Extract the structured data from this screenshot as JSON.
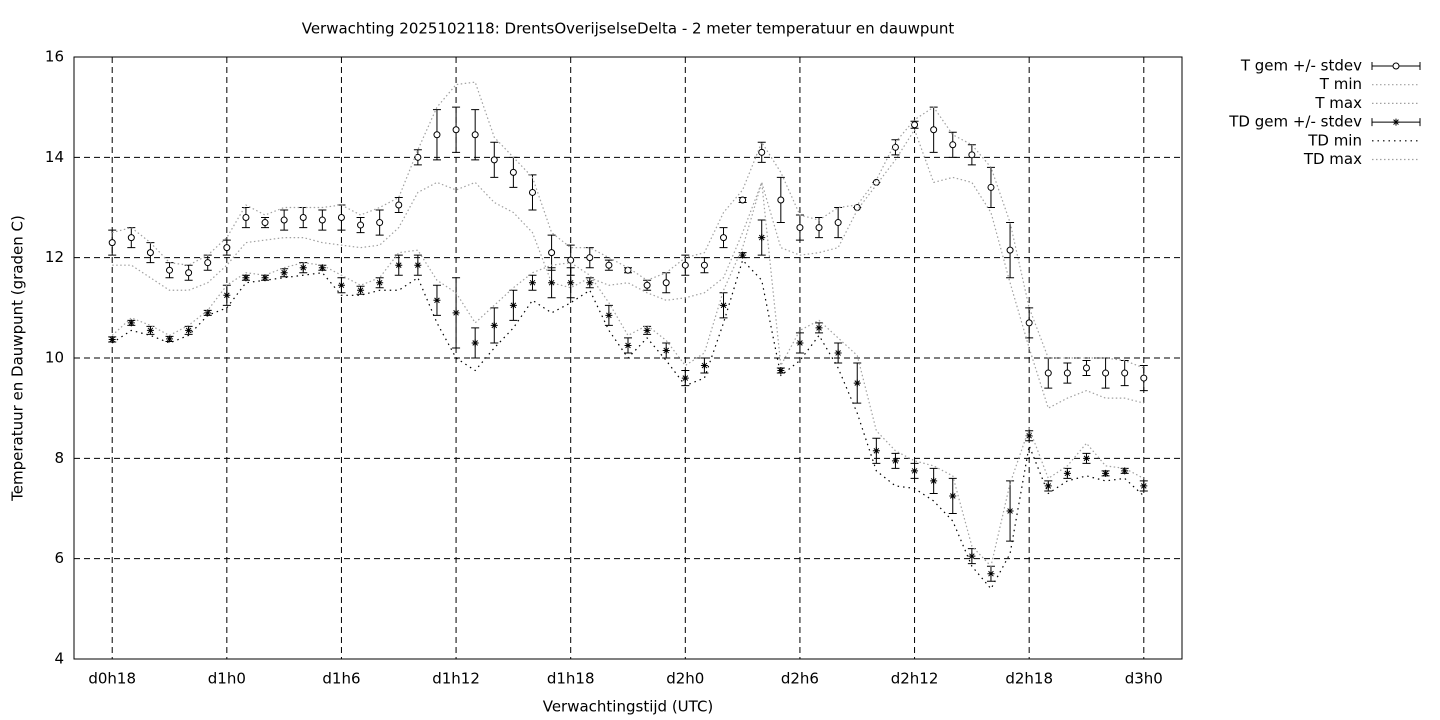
{
  "chart_data": {
    "type": "line",
    "title": "Verwachting 2025102118: DrentsOverijselseDelta - 2 meter temperatuur en dauwpunt",
    "xlabel": "Verwachtingstijd (UTC)",
    "ylabel": "Temperatuur en Dauwpunt (graden C)",
    "x": [
      0,
      1,
      2,
      3,
      4,
      5,
      6,
      7,
      8,
      9,
      10,
      11,
      12,
      13,
      14,
      15,
      16,
      17,
      18,
      19,
      20,
      21,
      22,
      23,
      24,
      25,
      26,
      27,
      28,
      29,
      30,
      31,
      32,
      33,
      34,
      35,
      36,
      37,
      38,
      39,
      40,
      41,
      42,
      43,
      44,
      45,
      46,
      47,
      48,
      49,
      50,
      51,
      52,
      53,
      54
    ],
    "xlim": [
      -2,
      56
    ],
    "xticks": [
      {
        "value": 0,
        "label": "d0h18"
      },
      {
        "value": 6,
        "label": "d1h0"
      },
      {
        "value": 12,
        "label": "d1h6"
      },
      {
        "value": 18,
        "label": "d1h12"
      },
      {
        "value": 24,
        "label": "d1h18"
      },
      {
        "value": 30,
        "label": "d2h0"
      },
      {
        "value": 36,
        "label": "d2h6"
      },
      {
        "value": 42,
        "label": "d2h12"
      },
      {
        "value": 48,
        "label": "d2h18"
      },
      {
        "value": 54,
        "label": "d3h0"
      }
    ],
    "ylim": [
      4,
      16
    ],
    "yticks": [
      4,
      6,
      8,
      10,
      12,
      14,
      16
    ],
    "grid": true,
    "legend": "right",
    "series": [
      {
        "name": "T gem +/- stdev",
        "color": "#000000",
        "marker": "circle",
        "style": "errorbars",
        "values": [
          12.3,
          12.4,
          12.1,
          11.75,
          11.7,
          11.9,
          12.2,
          12.8,
          12.7,
          12.75,
          12.8,
          12.75,
          12.8,
          12.65,
          12.7,
          13.05,
          14.0,
          14.45,
          14.55,
          14.45,
          13.95,
          13.7,
          13.3,
          12.1,
          11.95,
          12.0,
          11.85,
          11.75,
          11.45,
          11.5,
          11.85,
          11.85,
          12.4,
          13.15,
          14.1,
          13.15,
          12.6,
          12.6,
          12.7,
          13.0,
          13.5,
          14.2,
          14.65,
          14.55,
          14.25,
          14.05,
          13.4,
          12.15,
          10.7,
          9.7,
          9.7,
          9.8,
          9.7,
          9.7,
          9.6
        ],
        "errors": [
          0.25,
          0.2,
          0.2,
          0.15,
          0.15,
          0.15,
          0.15,
          0.2,
          0.1,
          0.2,
          0.2,
          0.2,
          0.25,
          0.15,
          0.25,
          0.15,
          0.15,
          0.5,
          0.45,
          0.5,
          0.35,
          0.3,
          0.35,
          0.35,
          0.3,
          0.2,
          0.1,
          0.05,
          0.1,
          0.2,
          0.2,
          0.15,
          0.2,
          0.05,
          0.2,
          0.45,
          0.25,
          0.2,
          0.3,
          0,
          0,
          0.15,
          0.07,
          0.45,
          0.25,
          0.2,
          0.4,
          0.55,
          0.3,
          0.3,
          0.2,
          0.15,
          0.3,
          0.25,
          0.25
        ]
      },
      {
        "name": "T min",
        "color": "#a0a0a0",
        "style": "dotted",
        "values": [
          11.85,
          11.85,
          11.6,
          11.35,
          11.35,
          11.5,
          11.85,
          12.3,
          12.35,
          12.4,
          12.4,
          12.3,
          12.25,
          12.2,
          12.25,
          12.6,
          13.3,
          13.5,
          13.35,
          13.5,
          13.1,
          12.9,
          12.5,
          11.5,
          11.4,
          11.6,
          11.45,
          11.5,
          11.3,
          11.15,
          11.2,
          11.3,
          11.6,
          12.5,
          13.5,
          12.2,
          12.05,
          12.1,
          12.2,
          12.95,
          13.45,
          13.95,
          14.55,
          13.5,
          13.6,
          13.5,
          12.9,
          11.5,
          10.2,
          9.0,
          9.2,
          9.35,
          9.2,
          9.2,
          9.1
        ]
      },
      {
        "name": "T max",
        "color": "#a0a0a0",
        "style": "dotted",
        "values": [
          12.5,
          12.6,
          12.3,
          11.9,
          11.85,
          12.05,
          12.4,
          13.05,
          12.85,
          13.0,
          13.0,
          13.0,
          13.05,
          12.85,
          13.0,
          13.2,
          14.15,
          15.0,
          15.45,
          15.5,
          14.4,
          14.0,
          13.6,
          12.5,
          12.2,
          12.2,
          12.0,
          11.8,
          11.55,
          11.7,
          12.0,
          12.1,
          12.9,
          13.35,
          14.3,
          13.7,
          12.85,
          12.75,
          13.0,
          13.05,
          13.55,
          14.3,
          14.75,
          15.0,
          14.45,
          14.25,
          13.8,
          12.7,
          11.0,
          10.0,
          10.0,
          10.0,
          10.0,
          9.95,
          9.8
        ]
      },
      {
        "name": "TD gem +/- stdev",
        "color": "#000000",
        "marker": "star",
        "style": "errorbars",
        "values": [
          10.37,
          10.7,
          10.55,
          10.38,
          10.55,
          10.9,
          11.25,
          11.6,
          11.6,
          11.7,
          11.8,
          11.8,
          11.45,
          11.35,
          11.5,
          11.85,
          11.85,
          11.15,
          10.9,
          10.3,
          10.65,
          11.05,
          11.5,
          11.5,
          11.5,
          11.5,
          10.85,
          10.25,
          10.55,
          10.15,
          9.6,
          9.85,
          11.05,
          12.05,
          12.4,
          9.75,
          10.3,
          10.6,
          10.1,
          9.5,
          8.15,
          7.95,
          7.75,
          7.55,
          7.25,
          6.05,
          5.7,
          6.95,
          8.45,
          7.45,
          7.7,
          8.0,
          7.7,
          7.75,
          7.45
        ],
        "errors": [
          0.05,
          0.05,
          0.08,
          0.05,
          0.08,
          0.05,
          0.2,
          0.05,
          0.05,
          0.08,
          0.1,
          0.05,
          0.15,
          0.08,
          0.1,
          0.2,
          0.2,
          0.3,
          0.7,
          0.3,
          0.35,
          0.3,
          0.15,
          0.3,
          0.3,
          0.1,
          0.2,
          0.15,
          0.08,
          0.15,
          0.15,
          0.15,
          0.25,
          0.05,
          0.35,
          0.05,
          0.2,
          0.1,
          0.2,
          0.4,
          0.25,
          0.15,
          0.15,
          0.25,
          0.35,
          0.15,
          0.15,
          0.6,
          0.1,
          0.1,
          0.1,
          0.1,
          0.05,
          0.05,
          0.1
        ]
      },
      {
        "name": "TD min",
        "color": "#000000",
        "style": "dotted",
        "values": [
          10.3,
          10.55,
          10.45,
          10.3,
          10.45,
          10.85,
          11.0,
          11.5,
          11.55,
          11.6,
          11.65,
          11.7,
          11.25,
          11.25,
          11.35,
          11.35,
          11.6,
          10.7,
          10.0,
          9.75,
          10.2,
          10.6,
          11.15,
          10.9,
          11.1,
          11.35,
          10.55,
          10.0,
          10.4,
          9.95,
          9.45,
          9.6,
          10.7,
          11.95,
          11.55,
          9.65,
          9.95,
          10.45,
          9.8,
          8.9,
          7.75,
          7.45,
          7.4,
          7.15,
          6.75,
          5.85,
          5.4,
          6.1,
          8.25,
          7.3,
          7.55,
          7.65,
          7.55,
          7.6,
          7.25
        ]
      },
      {
        "name": "TD max",
        "color": "#a0a0a0",
        "style": "dotted",
        "values": [
          10.45,
          10.8,
          10.65,
          10.45,
          10.65,
          10.95,
          11.45,
          11.7,
          11.65,
          11.8,
          11.9,
          11.85,
          11.65,
          11.45,
          11.6,
          12.1,
          12.15,
          11.55,
          11.3,
          10.7,
          11.05,
          11.4,
          11.7,
          11.85,
          11.9,
          11.65,
          11.1,
          10.45,
          10.65,
          10.35,
          9.85,
          10.1,
          11.35,
          12.2,
          13.5,
          9.85,
          10.55,
          10.75,
          10.4,
          10.05,
          8.55,
          8.15,
          7.95,
          7.85,
          7.65,
          6.25,
          5.85,
          7.5,
          8.6,
          7.6,
          7.85,
          8.3,
          7.85,
          7.8,
          7.6
        ]
      }
    ]
  }
}
